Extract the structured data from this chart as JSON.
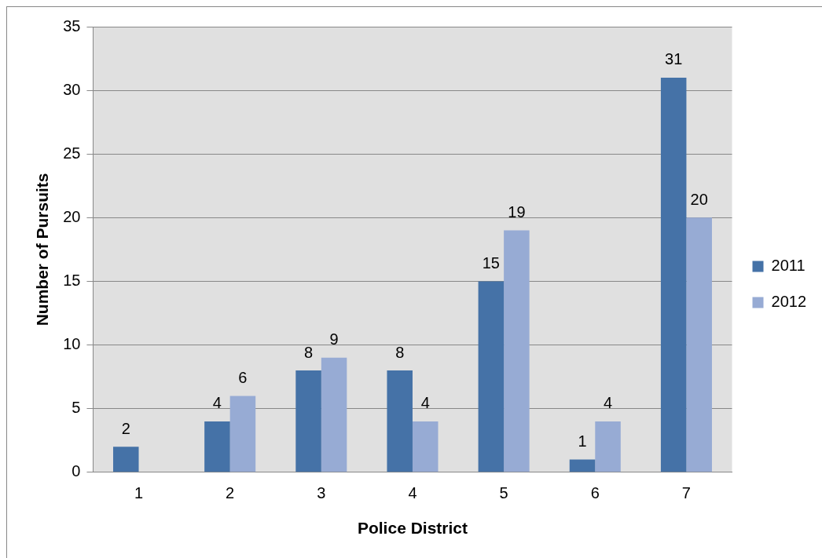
{
  "chart_data": {
    "type": "bar",
    "xlabel": "Police District",
    "ylabel": "Number of Pursuits",
    "categories": [
      "1",
      "2",
      "3",
      "4",
      "5",
      "6",
      "7"
    ],
    "series": [
      {
        "name": "2011",
        "color": "#4572a7",
        "values": [
          2,
          4,
          8,
          8,
          15,
          1,
          31
        ]
      },
      {
        "name": "2012",
        "color": "#97abd4",
        "values": [
          null,
          6,
          9,
          4,
          19,
          4,
          20
        ]
      }
    ],
    "ylim": [
      0,
      35
    ],
    "yticks": [
      0,
      5,
      10,
      15,
      20,
      25,
      30,
      35
    ],
    "grid": "y",
    "legend": "right",
    "data_labels": true
  }
}
